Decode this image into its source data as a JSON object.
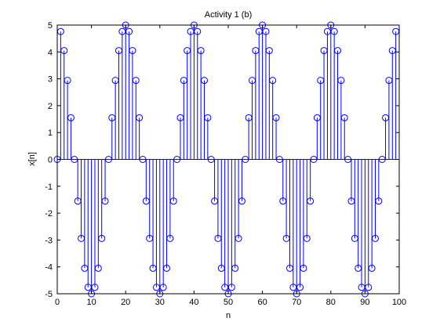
{
  "chart_data": {
    "type": "stem",
    "title": "Activity 1 (b)",
    "xlabel": "n",
    "ylabel": "x[n]",
    "xlim": [
      0,
      100
    ],
    "ylim": [
      -5,
      5
    ],
    "xticks": [
      0,
      10,
      20,
      30,
      40,
      50,
      60,
      70,
      80,
      90,
      100
    ],
    "yticks": [
      -5,
      -4,
      -3,
      -2,
      -1,
      0,
      1,
      2,
      3,
      4,
      5
    ],
    "grid": false,
    "legend": "none",
    "series": [
      {
        "marker": "circle",
        "color": "#0000ff",
        "points": [
          {
            "x": 0,
            "y": 0
          },
          {
            "x": 1,
            "y": 4.76
          },
          {
            "x": 2,
            "y": 4.05
          },
          {
            "x": 3,
            "y": 2.94
          },
          {
            "x": 4,
            "y": 1.55
          },
          {
            "x": 5,
            "y": 0
          },
          {
            "x": 6,
            "y": -1.55
          },
          {
            "x": 7,
            "y": -2.94
          },
          {
            "x": 8,
            "y": -4.05
          },
          {
            "x": 9,
            "y": -4.76
          },
          {
            "x": 10,
            "y": -5
          },
          {
            "x": 11,
            "y": -4.76
          },
          {
            "x": 12,
            "y": -4.05
          },
          {
            "x": 13,
            "y": -2.94
          },
          {
            "x": 14,
            "y": -1.55
          },
          {
            "x": 15,
            "y": 0
          },
          {
            "x": 16,
            "y": 1.55
          },
          {
            "x": 17,
            "y": 2.94
          },
          {
            "x": 18,
            "y": 4.05
          },
          {
            "x": 19,
            "y": 4.76
          },
          {
            "x": 20,
            "y": 5
          },
          {
            "x": 21,
            "y": 4.76
          },
          {
            "x": 22,
            "y": 4.05
          },
          {
            "x": 23,
            "y": 2.94
          },
          {
            "x": 24,
            "y": 1.55
          },
          {
            "x": 25,
            "y": 0
          },
          {
            "x": 26,
            "y": -1.55
          },
          {
            "x": 27,
            "y": -2.94
          },
          {
            "x": 28,
            "y": -4.05
          },
          {
            "x": 29,
            "y": -4.76
          },
          {
            "x": 30,
            "y": -5
          },
          {
            "x": 31,
            "y": -4.76
          },
          {
            "x": 32,
            "y": -4.05
          },
          {
            "x": 33,
            "y": -2.94
          },
          {
            "x": 34,
            "y": -1.55
          },
          {
            "x": 35,
            "y": 0
          },
          {
            "x": 36,
            "y": 1.55
          },
          {
            "x": 37,
            "y": 2.94
          },
          {
            "x": 38,
            "y": 4.05
          },
          {
            "x": 39,
            "y": 4.76
          },
          {
            "x": 40,
            "y": 5
          },
          {
            "x": 41,
            "y": 4.76
          },
          {
            "x": 42,
            "y": 4.05
          },
          {
            "x": 43,
            "y": 2.94
          },
          {
            "x": 44,
            "y": 1.55
          },
          {
            "x": 45,
            "y": 0
          },
          {
            "x": 46,
            "y": -1.55
          },
          {
            "x": 47,
            "y": -2.94
          },
          {
            "x": 48,
            "y": -4.05
          },
          {
            "x": 49,
            "y": -4.76
          },
          {
            "x": 50,
            "y": -5
          },
          {
            "x": 51,
            "y": -4.76
          },
          {
            "x": 52,
            "y": -4.05
          },
          {
            "x": 53,
            "y": -2.94
          },
          {
            "x": 54,
            "y": -1.55
          },
          {
            "x": 55,
            "y": 0
          },
          {
            "x": 56,
            "y": 1.55
          },
          {
            "x": 57,
            "y": 2.94
          },
          {
            "x": 58,
            "y": 4.05
          },
          {
            "x": 59,
            "y": 4.76
          },
          {
            "x": 60,
            "y": 5
          },
          {
            "x": 61,
            "y": 4.76
          },
          {
            "x": 62,
            "y": 4.05
          },
          {
            "x": 63,
            "y": 2.94
          },
          {
            "x": 64,
            "y": 1.55
          },
          {
            "x": 65,
            "y": 0
          },
          {
            "x": 66,
            "y": -1.55
          },
          {
            "x": 67,
            "y": -2.94
          },
          {
            "x": 68,
            "y": -4.05
          },
          {
            "x": 69,
            "y": -4.76
          },
          {
            "x": 70,
            "y": -5
          },
          {
            "x": 71,
            "y": -4.76
          },
          {
            "x": 72,
            "y": -4.05
          },
          {
            "x": 73,
            "y": -2.94
          },
          {
            "x": 74,
            "y": -1.55
          },
          {
            "x": 75,
            "y": 0
          },
          {
            "x": 76,
            "y": 1.55
          },
          {
            "x": 77,
            "y": 2.94
          },
          {
            "x": 78,
            "y": 4.05
          },
          {
            "x": 79,
            "y": 4.76
          },
          {
            "x": 80,
            "y": 5
          },
          {
            "x": 81,
            "y": 4.76
          },
          {
            "x": 82,
            "y": 4.05
          },
          {
            "x": 83,
            "y": 2.94
          },
          {
            "x": 84,
            "y": 1.55
          },
          {
            "x": 85,
            "y": 0
          },
          {
            "x": 86,
            "y": -1.55
          },
          {
            "x": 87,
            "y": -2.94
          },
          {
            "x": 88,
            "y": -4.05
          },
          {
            "x": 89,
            "y": -4.76
          },
          {
            "x": 90,
            "y": -5
          },
          {
            "x": 91,
            "y": -4.76
          },
          {
            "x": 92,
            "y": -4.05
          },
          {
            "x": 93,
            "y": -2.94
          },
          {
            "x": 94,
            "y": -1.55
          },
          {
            "x": 95,
            "y": 0
          },
          {
            "x": 96,
            "y": 1.55
          },
          {
            "x": 97,
            "y": 2.94
          },
          {
            "x": 98,
            "y": 4.05
          },
          {
            "x": 99,
            "y": 4.76
          }
        ]
      }
    ]
  }
}
